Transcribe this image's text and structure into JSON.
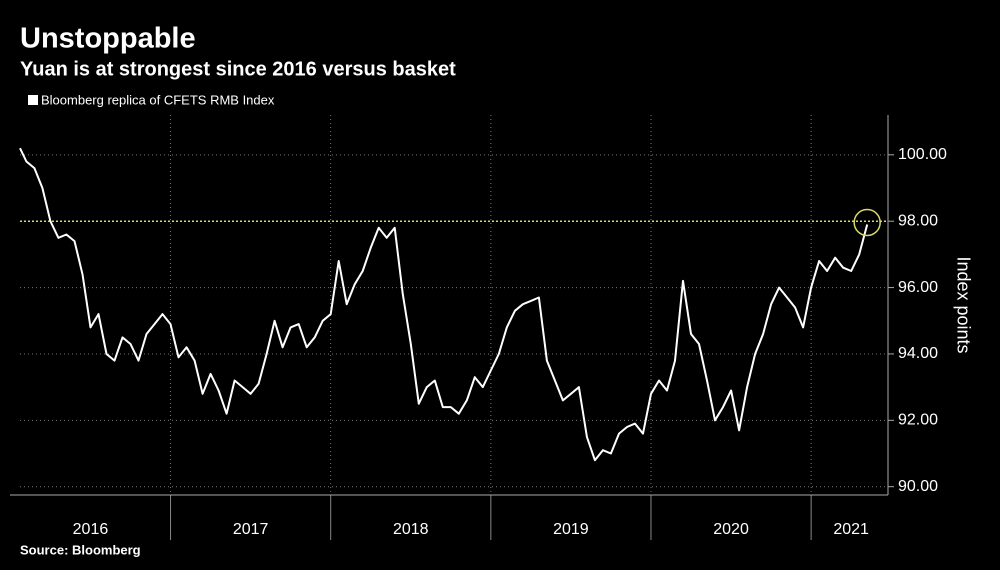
{
  "chart_data": {
    "type": "line",
    "title": "Unstoppable",
    "subtitle": "Yuan is at strongest since 2016 versus basket",
    "y_axis_label": "Index points",
    "source": "Source: Bloomberg",
    "x": [
      2016.06,
      2016.1,
      2016.15,
      2016.2,
      2016.25,
      2016.3,
      2016.35,
      2016.4,
      2016.45,
      2016.5,
      2016.55,
      2016.6,
      2016.65,
      2016.7,
      2016.75,
      2016.8,
      2016.85,
      2016.9,
      2016.95,
      2017.0,
      2017.05,
      2017.1,
      2017.15,
      2017.2,
      2017.25,
      2017.3,
      2017.35,
      2017.4,
      2017.45,
      2017.5,
      2017.55,
      2017.6,
      2017.65,
      2017.7,
      2017.75,
      2017.8,
      2017.85,
      2017.9,
      2017.95,
      2018.0,
      2018.05,
      2018.1,
      2018.15,
      2018.2,
      2018.25,
      2018.3,
      2018.35,
      2018.4,
      2018.45,
      2018.5,
      2018.55,
      2018.6,
      2018.65,
      2018.7,
      2018.75,
      2018.8,
      2018.85,
      2018.9,
      2018.95,
      2019.0,
      2019.05,
      2019.1,
      2019.15,
      2019.2,
      2019.25,
      2019.3,
      2019.35,
      2019.4,
      2019.45,
      2019.5,
      2019.55,
      2019.6,
      2019.65,
      2019.7,
      2019.75,
      2019.8,
      2019.85,
      2019.9,
      2019.95,
      2020.0,
      2020.05,
      2020.1,
      2020.15,
      2020.2,
      2020.25,
      2020.3,
      2020.35,
      2020.4,
      2020.45,
      2020.5,
      2020.55,
      2020.6,
      2020.65,
      2020.7,
      2020.75,
      2020.8,
      2020.85,
      2020.9,
      2020.95,
      2021.0,
      2021.05,
      2021.1,
      2021.15,
      2021.2,
      2021.25,
      2021.3,
      2021.35
    ],
    "series": [
      {
        "name": "Bloomberg replica of CFETS RMB Index",
        "color": "#ffffff",
        "values": [
          100.2,
          99.8,
          99.6,
          99.0,
          98.0,
          97.5,
          97.6,
          97.4,
          96.4,
          94.8,
          95.2,
          94.0,
          93.8,
          94.5,
          94.3,
          93.8,
          94.6,
          94.9,
          95.2,
          94.9,
          93.9,
          94.2,
          93.8,
          92.8,
          93.4,
          92.9,
          92.2,
          93.2,
          93.0,
          92.8,
          93.1,
          94.0,
          95.0,
          94.2,
          94.8,
          94.9,
          94.2,
          94.5,
          95.0,
          95.2,
          96.8,
          95.5,
          96.1,
          96.5,
          97.2,
          97.8,
          97.5,
          97.8,
          95.8,
          94.3,
          92.5,
          93.0,
          93.2,
          92.4,
          92.4,
          92.2,
          92.6,
          93.3,
          93.0,
          93.5,
          94.0,
          94.8,
          95.3,
          95.5,
          95.6,
          95.7,
          93.8,
          93.2,
          92.6,
          92.8,
          93.0,
          91.5,
          90.8,
          91.1,
          91.0,
          91.6,
          91.8,
          91.9,
          91.6,
          92.8,
          93.2,
          92.9,
          93.8,
          96.2,
          94.6,
          94.3,
          93.2,
          92.0,
          92.4,
          92.9,
          91.7,
          93.0,
          94.0,
          94.6,
          95.5,
          96.0,
          95.7,
          95.4,
          94.8,
          96.0,
          96.8,
          96.5,
          96.9,
          96.6,
          96.5,
          97.0,
          97.9
        ]
      }
    ],
    "xlim": [
      2016.06,
      2021.48
    ],
    "xticks": [
      {
        "value": 2016.5,
        "label": "2016"
      },
      {
        "value": 2017.5,
        "label": "2017"
      },
      {
        "value": 2018.5,
        "label": "2018"
      },
      {
        "value": 2019.5,
        "label": "2019"
      },
      {
        "value": 2020.5,
        "label": "2020"
      },
      {
        "value": 2021.25,
        "label": "2021"
      }
    ],
    "year_boundaries": [
      2017,
      2018,
      2019,
      2020,
      2021
    ],
    "ylim": [
      89.75,
      101.2
    ],
    "yticks": [
      {
        "value": 90,
        "label": "90.00"
      },
      {
        "value": 92,
        "label": "92.00"
      },
      {
        "value": 94,
        "label": "94.00"
      },
      {
        "value": 96,
        "label": "96.00"
      },
      {
        "value": 98,
        "label": "98.00"
      },
      {
        "value": 100,
        "label": "100.00"
      }
    ],
    "reference_y": 98,
    "reference_color": "#d8d86a",
    "grid": true
  }
}
